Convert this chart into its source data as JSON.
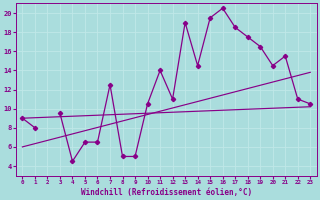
{
  "xlabel": "Windchill (Refroidissement éolien,°C)",
  "x_data": [
    0,
    1,
    2,
    3,
    4,
    5,
    6,
    7,
    8,
    9,
    10,
    11,
    12,
    13,
    14,
    15,
    16,
    17,
    18,
    19,
    20,
    21,
    22,
    23
  ],
  "main_y": [
    9,
    8,
    null,
    9.5,
    4.5,
    6.5,
    6.5,
    12.5,
    5,
    5,
    10.5,
    14,
    11,
    19,
    14.5,
    19.5,
    20.5,
    18.5,
    17.5,
    16.5,
    14.5,
    15.5,
    11,
    10.5
  ],
  "trend1_x": [
    0,
    23
  ],
  "trend1_y": [
    9.0,
    10.2
  ],
  "trend2_x": [
    0,
    23
  ],
  "trend2_y": [
    6.0,
    13.8
  ],
  "line_color": "#880088",
  "bg_color": "#aadddd",
  "grid_color": "#cceeee",
  "ylim": [
    3,
    21
  ],
  "xlim": [
    -0.5,
    23.5
  ],
  "yticks": [
    4,
    6,
    8,
    10,
    12,
    14,
    16,
    18,
    20
  ],
  "xticks": [
    0,
    1,
    2,
    3,
    4,
    5,
    6,
    7,
    8,
    9,
    10,
    11,
    12,
    13,
    14,
    15,
    16,
    17,
    18,
    19,
    20,
    21,
    22,
    23
  ]
}
